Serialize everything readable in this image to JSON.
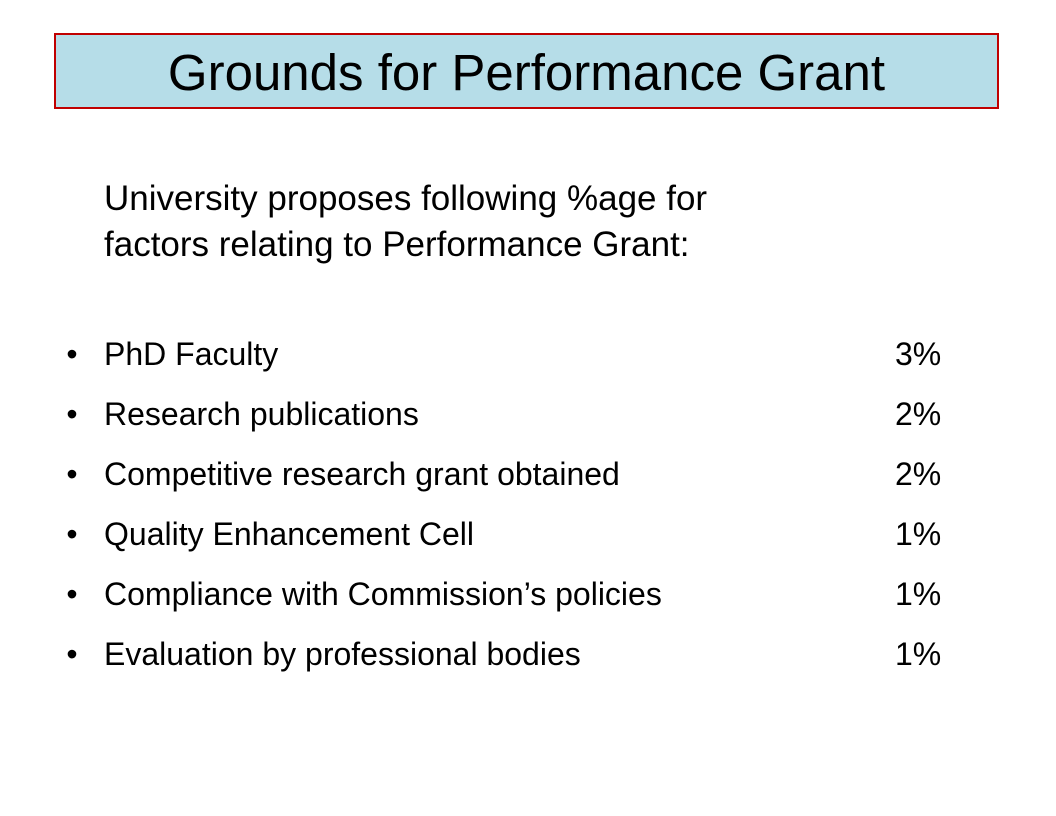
{
  "slide": {
    "title": "Grounds for Performance Grant",
    "title_background": "#b6dde8",
    "title_border": "#c00000",
    "intro_lines": [
      "University proposes following %age for",
      "factors relating to Performance Grant:"
    ],
    "bullet_symbol": "•",
    "factors": [
      {
        "label": "PhD Faculty",
        "value": "3%"
      },
      {
        "label": "Research publications",
        "value": "2%"
      },
      {
        "label": "Competitive research grant obtained",
        "value": "2%"
      },
      {
        "label": "Quality Enhancement Cell",
        "value": "1%"
      },
      {
        "label": "Compliance with Commission’s policies",
        "value": "1%"
      },
      {
        "label": "Evaluation by professional bodies",
        "value": "1%"
      }
    ]
  }
}
